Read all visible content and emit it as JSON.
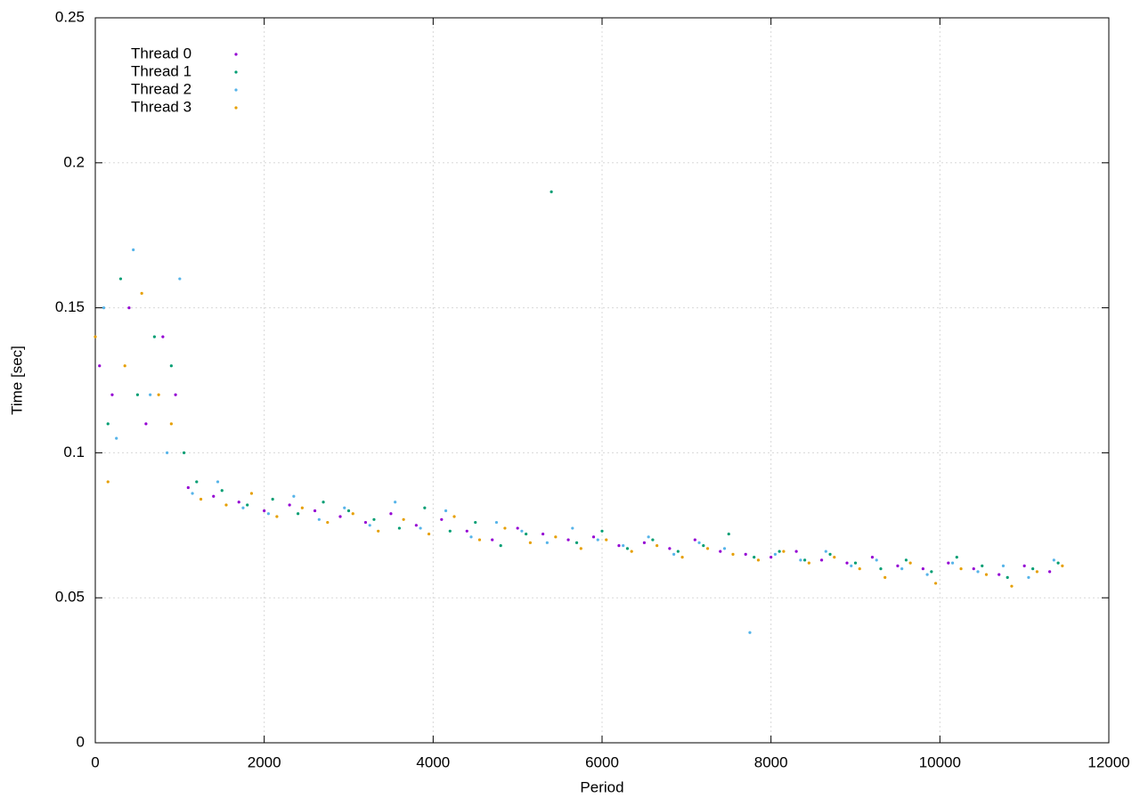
{
  "chart_data": {
    "type": "scatter",
    "xlabel": "Period",
    "ylabel": "Time [sec]",
    "xlim": [
      0,
      12000
    ],
    "xticks": [
      0,
      2000,
      4000,
      6000,
      8000,
      10000,
      12000
    ],
    "ylim": [
      0,
      0.25
    ],
    "yticks": [
      0,
      0.05,
      0.1,
      0.15,
      0.2,
      0.25
    ],
    "grid": true,
    "legend": "top-left",
    "series": [
      {
        "name": "Thread 0",
        "color": "#9400d3",
        "x": [
          50,
          200,
          400,
          600,
          800,
          950,
          1100,
          1400,
          1700,
          2000,
          2300,
          2600,
          2900,
          3200,
          3500,
          3800,
          4100,
          4400,
          4700,
          5000,
          5300,
          5600,
          5900,
          6200,
          6500,
          6800,
          7100,
          7400,
          7700,
          8000,
          8300,
          8600,
          8900,
          9200,
          9500,
          9800,
          10100,
          10400,
          10700,
          11000,
          11300
        ],
        "values": [
          0.13,
          0.12,
          0.15,
          0.11,
          0.14,
          0.12,
          0.088,
          0.085,
          0.083,
          0.08,
          0.082,
          0.08,
          0.078,
          0.076,
          0.079,
          0.075,
          0.077,
          0.073,
          0.07,
          0.074,
          0.072,
          0.07,
          0.071,
          0.068,
          0.069,
          0.067,
          0.07,
          0.066,
          0.065,
          0.064,
          0.066,
          0.063,
          0.062,
          0.064,
          0.061,
          0.06,
          0.062,
          0.06,
          0.058,
          0.061,
          0.059
        ]
      },
      {
        "name": "Thread 1",
        "color": "#009e73",
        "x": [
          150,
          300,
          500,
          700,
          900,
          1050,
          1200,
          1500,
          1800,
          2100,
          2400,
          2700,
          3000,
          3300,
          3600,
          3900,
          4200,
          4500,
          4800,
          5100,
          5400,
          5700,
          6000,
          6300,
          6600,
          6900,
          7200,
          7500,
          7800,
          8100,
          8400,
          8700,
          9000,
          9300,
          9600,
          9900,
          10200,
          10500,
          10800,
          11100,
          11400
        ],
        "values": [
          0.11,
          0.16,
          0.12,
          0.14,
          0.13,
          0.1,
          0.09,
          0.087,
          0.082,
          0.084,
          0.079,
          0.083,
          0.08,
          0.077,
          0.074,
          0.081,
          0.073,
          0.076,
          0.068,
          0.072,
          0.19,
          0.069,
          0.073,
          0.067,
          0.07,
          0.066,
          0.068,
          0.072,
          0.064,
          0.066,
          0.063,
          0.065,
          0.062,
          0.06,
          0.063,
          0.059,
          0.064,
          0.061,
          0.057,
          0.06,
          0.062
        ]
      },
      {
        "name": "Thread 2",
        "color": "#56b4e9",
        "x": [
          100,
          250,
          450,
          650,
          850,
          1000,
          1150,
          1450,
          1750,
          2050,
          2350,
          2650,
          2950,
          3250,
          3550,
          3850,
          4150,
          4450,
          4750,
          5050,
          5350,
          5650,
          5950,
          6250,
          6550,
          6850,
          7150,
          7450,
          7750,
          8050,
          8350,
          8650,
          8950,
          9250,
          9550,
          9850,
          10150,
          10450,
          10750,
          11050,
          11350
        ],
        "values": [
          0.15,
          0.105,
          0.17,
          0.12,
          0.1,
          0.16,
          0.086,
          0.09,
          0.081,
          0.079,
          0.085,
          0.077,
          0.081,
          0.075,
          0.083,
          0.074,
          0.08,
          0.071,
          0.076,
          0.073,
          0.069,
          0.074,
          0.07,
          0.068,
          0.071,
          0.065,
          0.069,
          0.067,
          0.038,
          0.065,
          0.063,
          0.066,
          0.061,
          0.063,
          0.06,
          0.058,
          0.062,
          0.059,
          0.061,
          0.057,
          0.063
        ]
      },
      {
        "name": "Thread 3",
        "color": "#e69f00",
        "x": [
          0,
          150,
          350,
          550,
          750,
          900,
          1250,
          1550,
          1850,
          2150,
          2450,
          2750,
          3050,
          3350,
          3650,
          3950,
          4250,
          4550,
          4850,
          5150,
          5450,
          5750,
          6050,
          6350,
          6650,
          6950,
          7250,
          7550,
          7850,
          8150,
          8450,
          8750,
          9050,
          9350,
          9650,
          9950,
          10250,
          10550,
          10850,
          11150,
          11450
        ],
        "values": [
          0.14,
          0.09,
          0.13,
          0.155,
          0.12,
          0.11,
          0.084,
          0.082,
          0.086,
          0.078,
          0.081,
          0.076,
          0.079,
          0.073,
          0.077,
          0.072,
          0.078,
          0.07,
          0.074,
          0.069,
          0.071,
          0.067,
          0.07,
          0.066,
          0.068,
          0.064,
          0.067,
          0.065,
          0.063,
          0.066,
          0.062,
          0.064,
          0.06,
          0.057,
          0.062,
          0.055,
          0.06,
          0.058,
          0.054,
          0.059,
          0.061
        ]
      }
    ]
  }
}
